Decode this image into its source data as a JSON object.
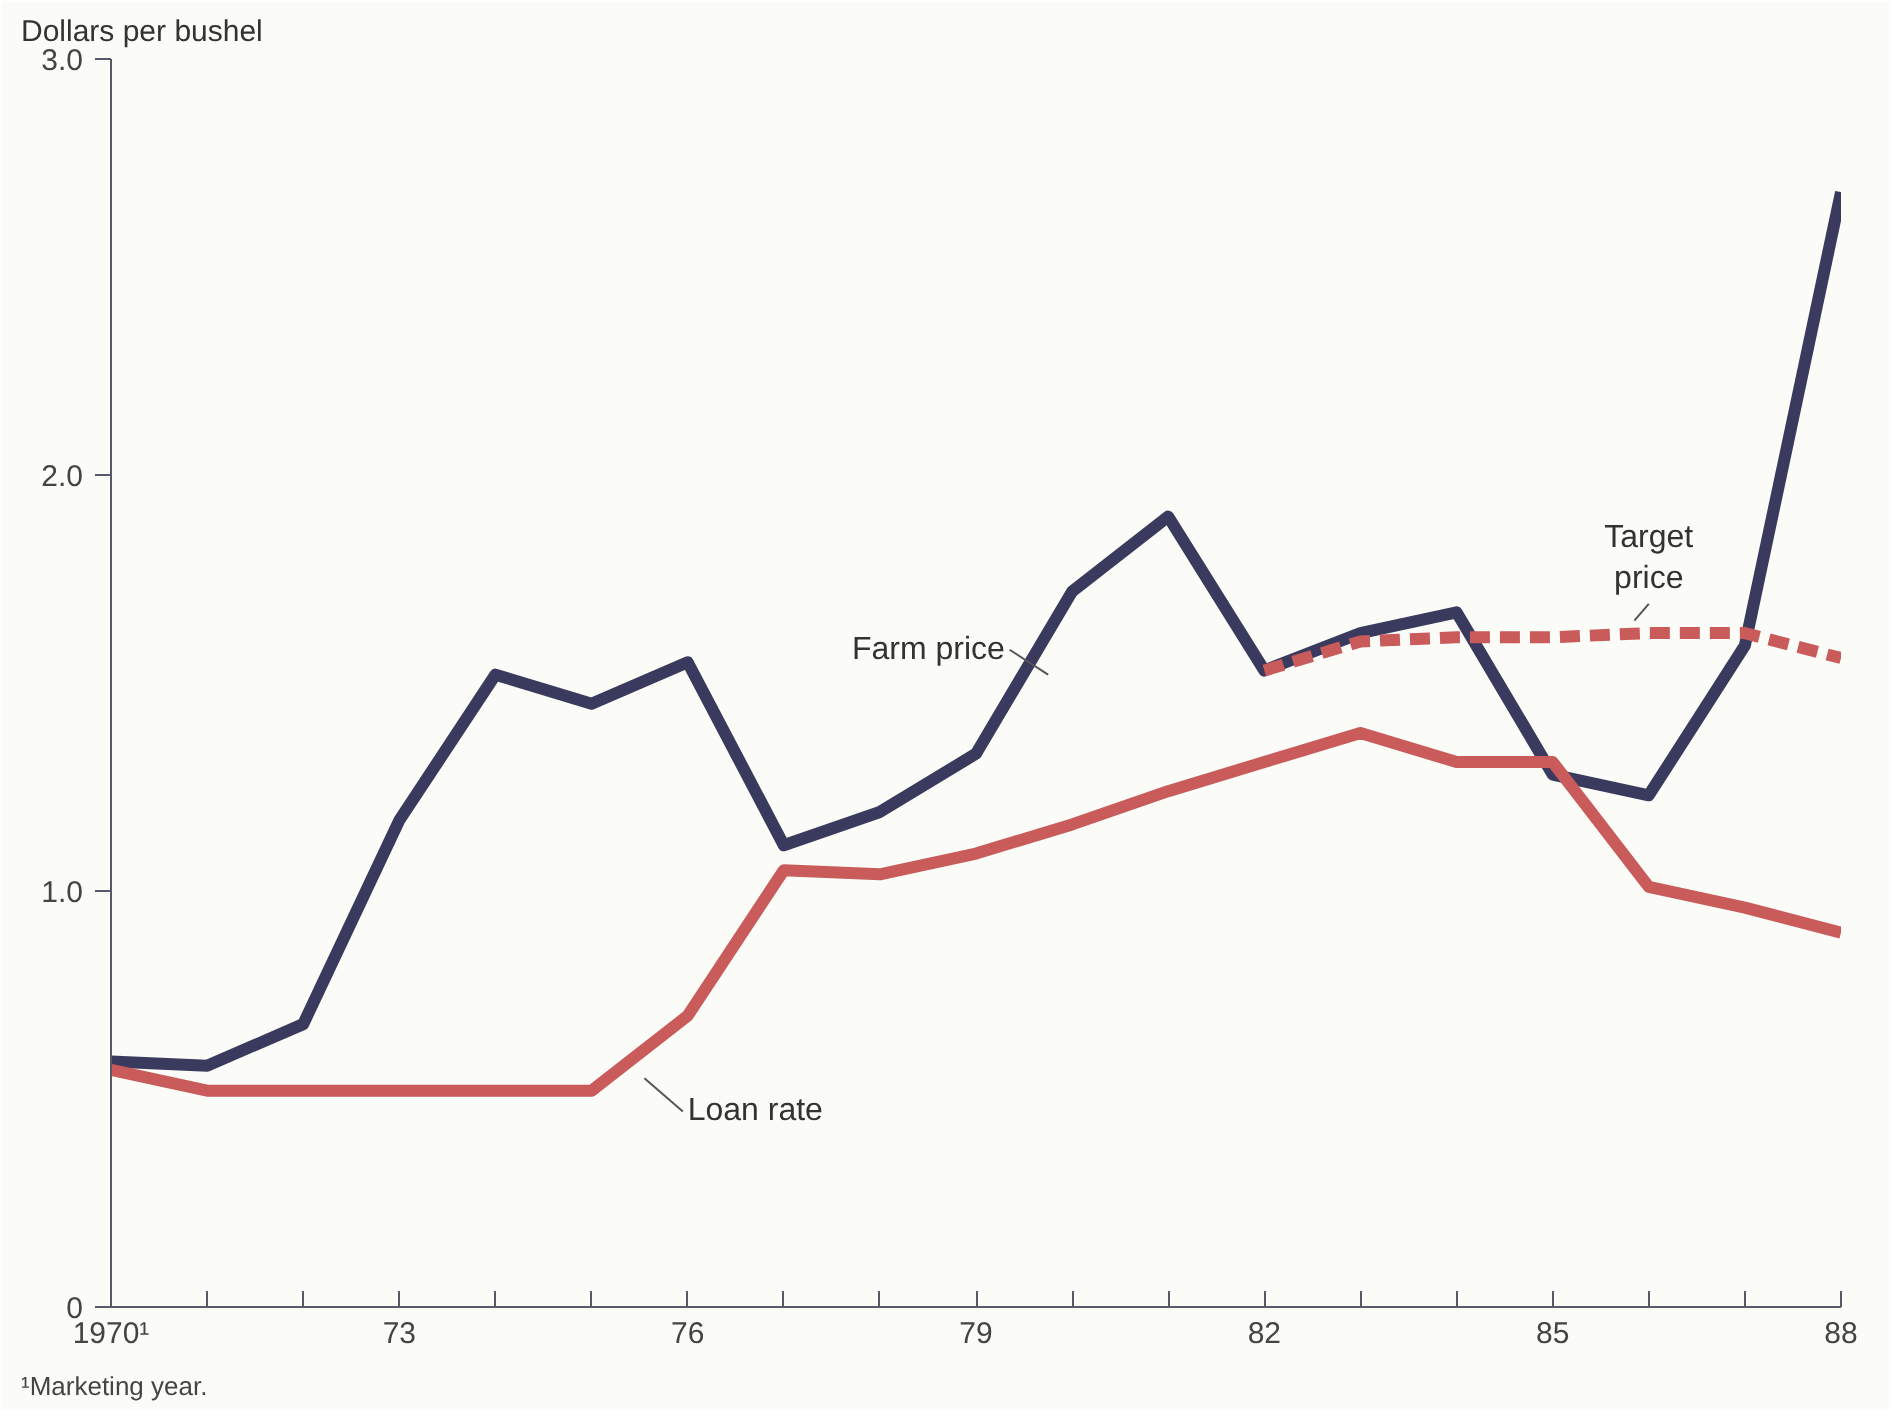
{
  "chart_data": {
    "type": "line",
    "ylabel": "Dollars per bushel",
    "annotations": [
      "¹Marketing year."
    ],
    "x": [
      1970,
      1971,
      1972,
      1973,
      1974,
      1975,
      1976,
      1977,
      1978,
      1979,
      1980,
      1981,
      1982,
      1983,
      1984,
      1985,
      1986,
      1987,
      1988
    ],
    "series": [
      {
        "name": "Farm price",
        "color": "#3a3a5e",
        "line_style": "solid",
        "values": [
          0.59,
          0.58,
          0.68,
          1.17,
          1.52,
          1.45,
          1.55,
          1.11,
          1.19,
          1.33,
          1.72,
          1.9,
          1.53,
          1.62,
          1.67,
          1.28,
          1.23,
          1.59,
          2.68
        ]
      },
      {
        "name": "Loan rate",
        "color": "#c95b5b",
        "line_style": "solid",
        "values": [
          0.57,
          0.52,
          0.52,
          0.52,
          0.52,
          0.52,
          0.7,
          1.05,
          1.04,
          1.09,
          1.16,
          1.24,
          1.31,
          1.38,
          1.31,
          1.31,
          1.01,
          0.96,
          0.9
        ]
      },
      {
        "name": "Target price",
        "color": "#c95b5b",
        "line_style": "dashed",
        "x": [
          1982,
          1983,
          1984,
          1985,
          1986,
          1987,
          1988
        ],
        "values": [
          1.53,
          1.6,
          1.61,
          1.61,
          1.62,
          1.62,
          1.56
        ]
      }
    ],
    "xlim": [
      1970,
      1988
    ],
    "xticks": [
      {
        "value": 1970,
        "label": "1970¹"
      },
      {
        "value": 1971,
        "label": null
      },
      {
        "value": 1972,
        "label": null
      },
      {
        "value": 1973,
        "label": "73"
      },
      {
        "value": 1974,
        "label": null
      },
      {
        "value": 1975,
        "label": null
      },
      {
        "value": 1976,
        "label": "76"
      },
      {
        "value": 1977,
        "label": null
      },
      {
        "value": 1978,
        "label": null
      },
      {
        "value": 1979,
        "label": "79"
      },
      {
        "value": 1980,
        "label": null
      },
      {
        "value": 1981,
        "label": null
      },
      {
        "value": 1982,
        "label": "82"
      },
      {
        "value": 1983,
        "label": null
      },
      {
        "value": 1984,
        "label": null
      },
      {
        "value": 1985,
        "label": "85"
      },
      {
        "value": 1986,
        "label": null
      },
      {
        "value": 1987,
        "label": null
      },
      {
        "value": 1988,
        "label": "88"
      }
    ],
    "ylim": [
      0,
      3
    ],
    "yticks": [
      {
        "value": 0,
        "label": "0"
      },
      {
        "value": 1,
        "label": "1.0"
      },
      {
        "value": 2,
        "label": "2.0"
      },
      {
        "value": 3,
        "label": "3.0"
      }
    ],
    "grid": false,
    "legend": false
  }
}
